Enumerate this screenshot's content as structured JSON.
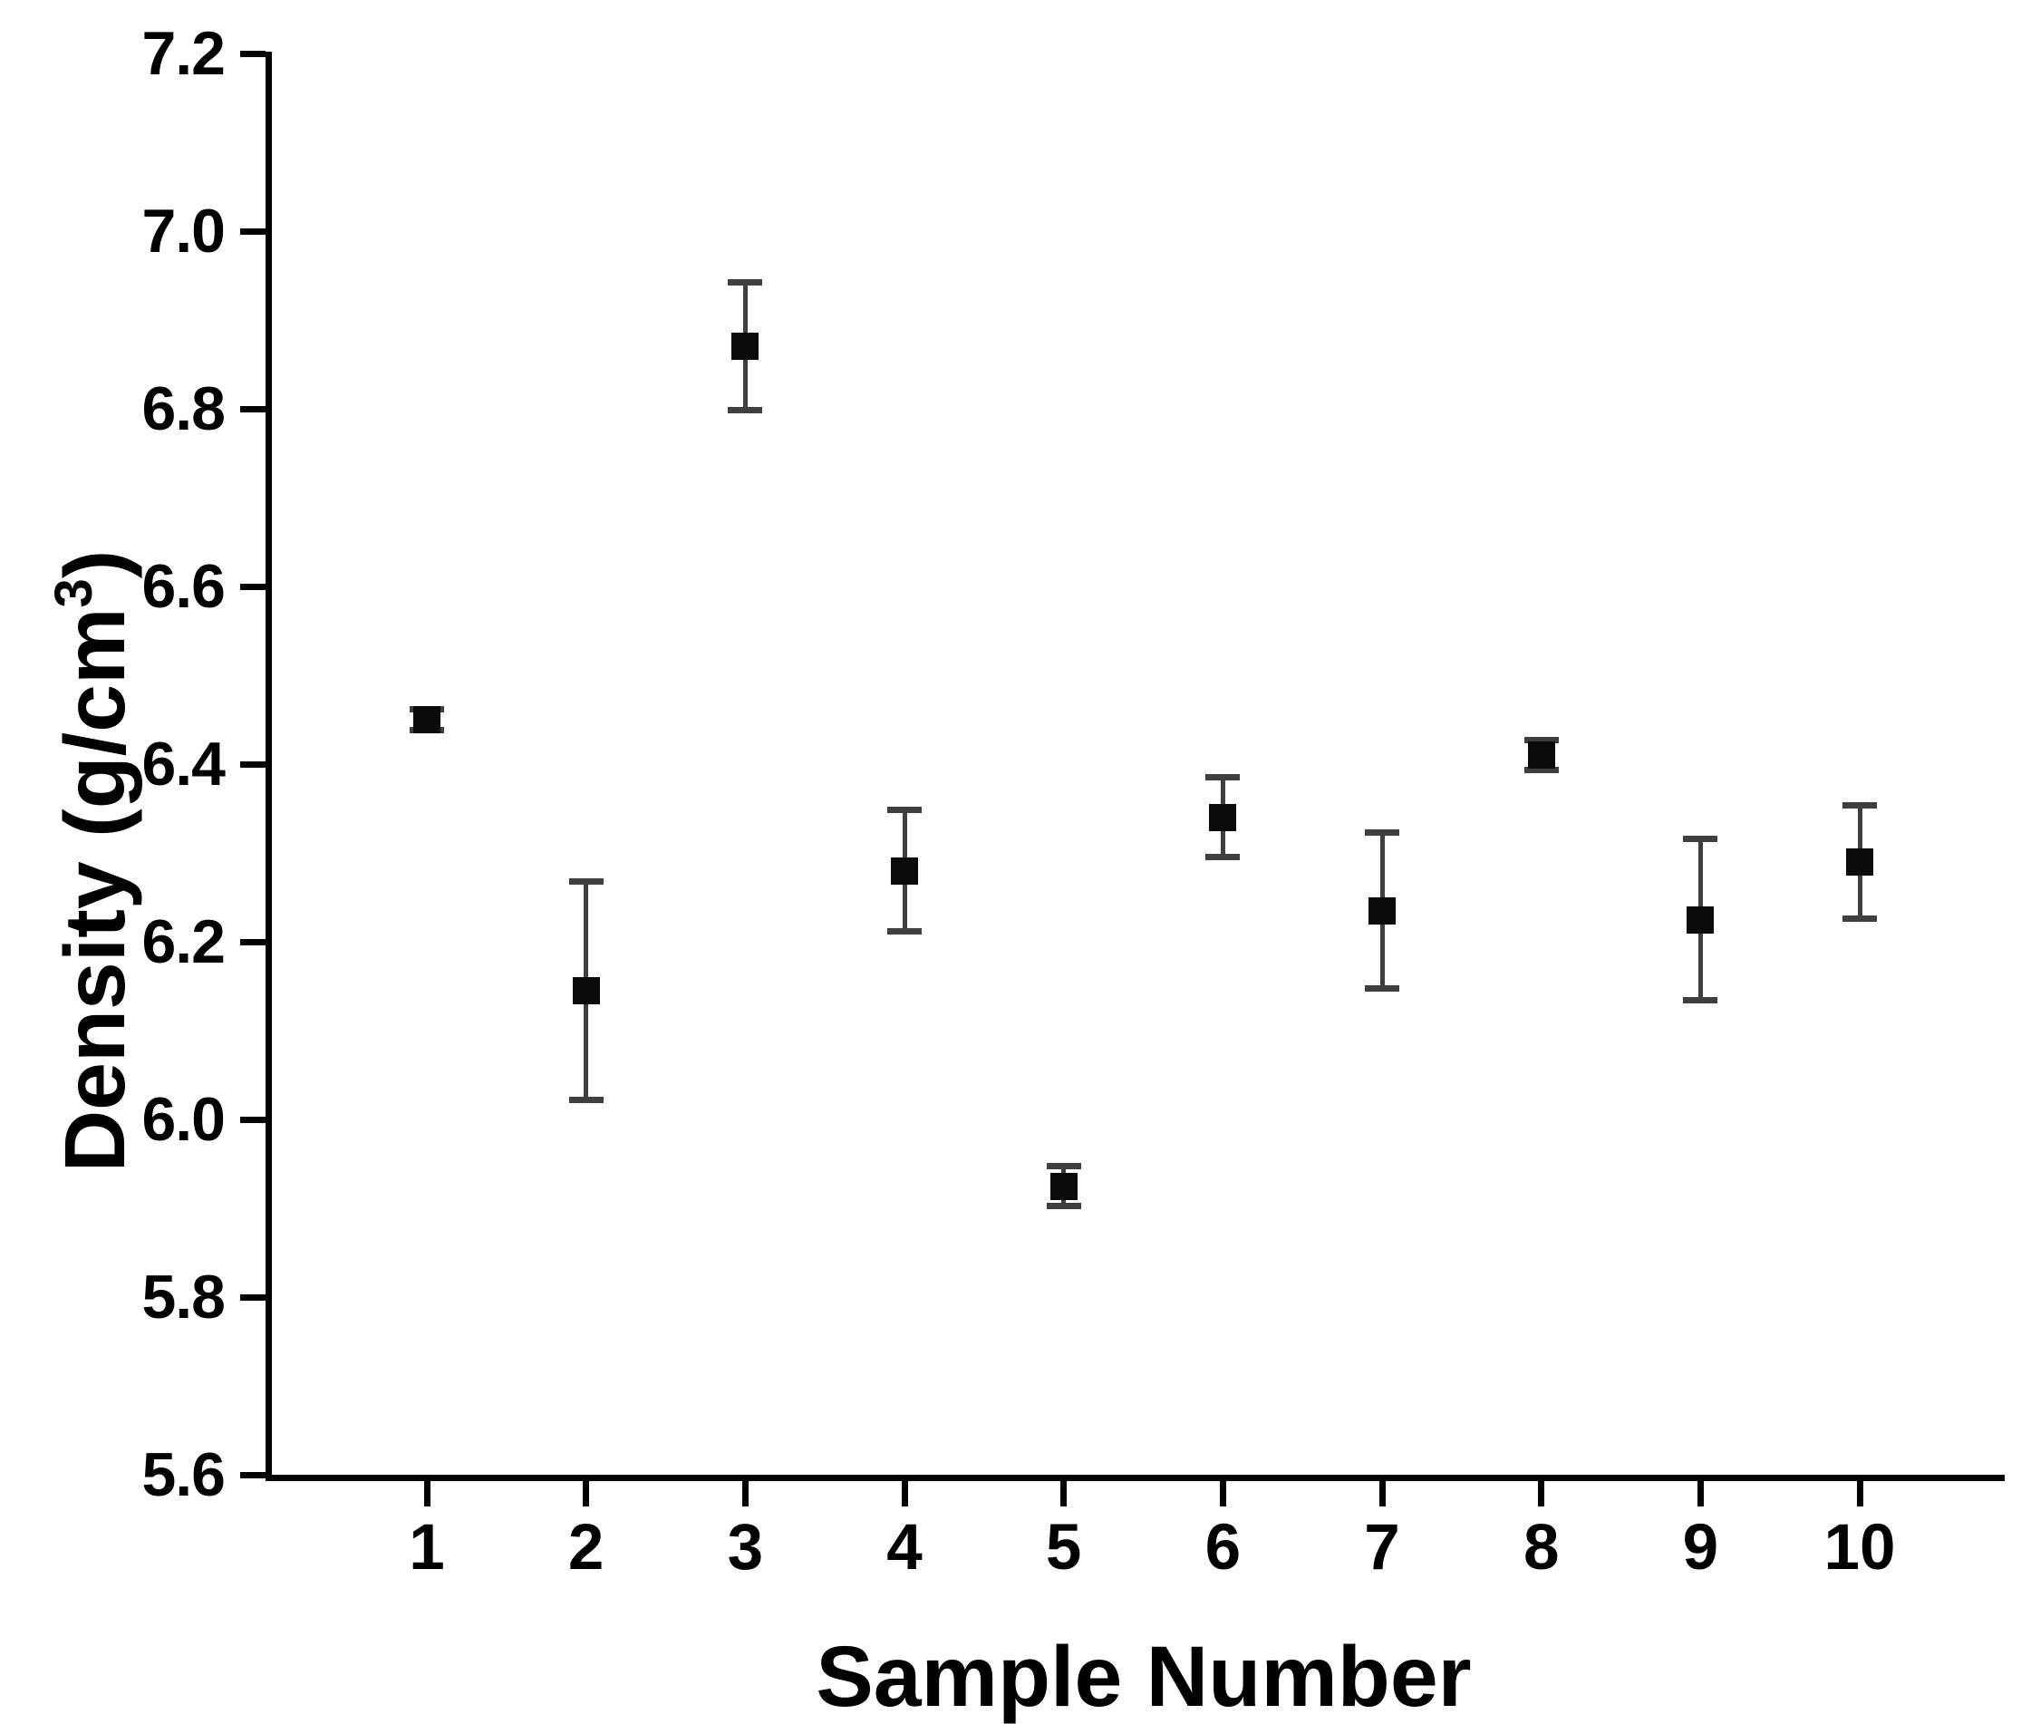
{
  "figure": {
    "background_color": "#ffffff",
    "axis_color": "#000000",
    "marker_color": "#0a0a0a",
    "error_bar_color": "#3f3f3f"
  },
  "chart_data": {
    "type": "scatter",
    "title": "",
    "xlabel": "Sample Number",
    "ylabel": "Density (g/cm³)",
    "ylabel_parts": {
      "main": "Density (g/cm",
      "sup": "3",
      "close": ")"
    },
    "x": [
      1,
      2,
      3,
      4,
      5,
      6,
      7,
      8,
      9,
      10
    ],
    "y": [
      6.45,
      6.145,
      6.87,
      6.28,
      5.925,
      6.34,
      6.235,
      6.41,
      6.225,
      6.29
    ],
    "y_err": [
      0.012,
      0.123,
      0.072,
      0.068,
      0.022,
      0.045,
      0.088,
      0.017,
      0.091,
      0.064
    ],
    "marker": "filled-square",
    "error_bars": "vertical-with-caps",
    "grid": false,
    "legend": null,
    "xlim": [
      0,
      10.9
    ],
    "ylim": [
      5.6,
      7.2
    ],
    "xticks": [
      1,
      2,
      3,
      4,
      5,
      6,
      7,
      8,
      9,
      10
    ],
    "xtick_labels": [
      "1",
      "2",
      "3",
      "4",
      "5",
      "6",
      "7",
      "8",
      "9",
      "10"
    ],
    "yticks": [
      7.2,
      7.0,
      6.8,
      6.6,
      6.4,
      6.2,
      6.0,
      5.8,
      5.6
    ],
    "ytick_labels": [
      "7.2",
      "7.0",
      "6.8",
      "6.6",
      "6.4",
      "6.2",
      "6.0",
      "5.8",
      "5.6"
    ]
  }
}
